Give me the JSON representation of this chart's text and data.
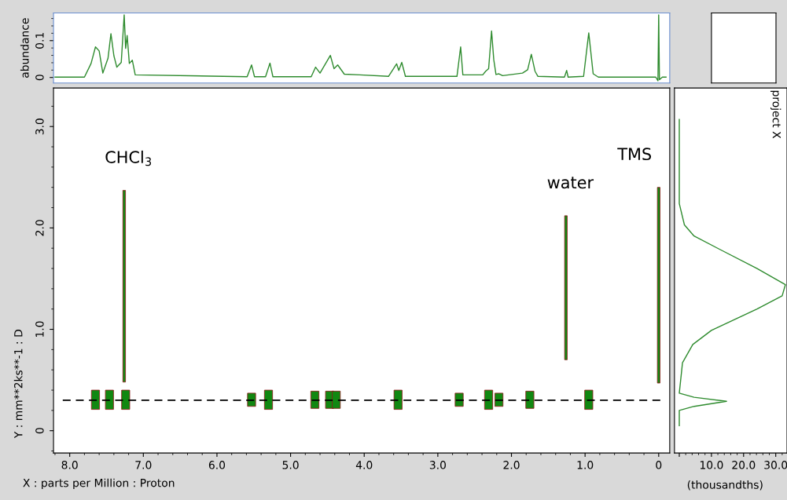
{
  "chart_data": [
    {
      "type": "line",
      "ylabel": "abundance",
      "tick_labels": "y",
      "xlim": [
        8.22,
        -0.15
      ],
      "ylim": [
        -0.015,
        0.175
      ],
      "yticks": [
        0,
        0.1
      ],
      "grid": false,
      "legend": false,
      "series": [
        {
          "color": "#2e8b2e",
          "x": [
            8.2,
            7.8,
            7.71,
            7.65,
            7.6,
            7.55,
            7.48,
            7.44,
            7.4,
            7.36,
            7.3,
            7.26,
            7.24,
            7.22,
            7.19,
            7.15,
            7.11,
            5.59,
            5.53,
            5.49,
            5.34,
            5.28,
            5.24,
            4.72,
            4.66,
            4.6,
            4.46,
            4.41,
            4.36,
            4.27,
            4.06,
            3.67,
            3.56,
            3.53,
            3.49,
            3.44,
            2.74,
            2.69,
            2.66,
            2.39,
            2.35,
            2.31,
            2.27,
            2.24,
            2.21,
            2.17,
            2.12,
            1.85,
            1.78,
            1.73,
            1.68,
            1.64,
            1.28,
            1.25,
            1.23,
            1.02,
            0.95,
            0.89,
            0.82,
            0.04,
            0.01,
            0.0,
            -0.01,
            -0.05,
            -0.1
          ],
          "values": [
            0.001,
            0.001,
            0.038,
            0.083,
            0.072,
            0.012,
            0.052,
            0.119,
            0.059,
            0.028,
            0.041,
            0.17,
            0.079,
            0.114,
            0.038,
            0.047,
            0.007,
            0.002,
            0.034,
            0.002,
            0.002,
            0.039,
            0.002,
            0.002,
            0.028,
            0.012,
            0.06,
            0.024,
            0.034,
            0.009,
            0.007,
            0.003,
            0.037,
            0.019,
            0.041,
            0.003,
            0.003,
            0.083,
            0.007,
            0.007,
            0.017,
            0.024,
            0.126,
            0.048,
            0.008,
            0.01,
            0.005,
            0.012,
            0.021,
            0.063,
            0.017,
            0.003,
            0.001,
            0.019,
            0.001,
            0.003,
            0.121,
            0.01,
            0.001,
            0.001,
            -0.009,
            0.17,
            -0.006,
            0.001,
            0.001
          ]
        }
      ]
    },
    {
      "type": "bar",
      "xlabel": "X : parts per Million : Proton",
      "ylabel": "Y : mm**2ks**-1 : D",
      "xlim": [
        8.22,
        -0.15
      ],
      "ylim": [
        -0.22,
        3.38
      ],
      "xticks": [
        {
          "value": 8,
          "label": "8.0"
        },
        {
          "value": 7,
          "label": "7.0"
        },
        {
          "value": 6,
          "label": "6.0"
        },
        {
          "value": 5,
          "label": "5.0"
        },
        {
          "value": 4,
          "label": "4.0"
        },
        {
          "value": 3,
          "label": "3.0"
        },
        {
          "value": 2,
          "label": "2.0"
        },
        {
          "value": 1,
          "label": "1.0"
        },
        0
      ],
      "yticks": [
        0,
        {
          "value": 1,
          "label": "1.0"
        },
        {
          "value": 2,
          "label": "2.0"
        },
        {
          "value": 3,
          "label": "3.0"
        }
      ],
      "grid": false,
      "legend": false,
      "series": [
        {
          "color": "#118811",
          "x": [
            7.65,
            7.46,
            7.24,
            5.53,
            5.3,
            4.67,
            4.47,
            4.38,
            3.54,
            2.71,
            2.31,
            2.17,
            1.75,
            0.95
          ],
          "base": [
            0.21,
            0.21,
            0.21,
            0.24,
            0.21,
            0.22,
            0.22,
            0.22,
            0.21,
            0.24,
            0.21,
            0.24,
            0.22,
            0.21
          ],
          "values": [
            0.19,
            0.19,
            0.19,
            0.13,
            0.19,
            0.17,
            0.17,
            0.17,
            0.19,
            0.13,
            0.19,
            0.13,
            0.17,
            0.19
          ]
        },
        {
          "color": "#118811",
          "x": [
            7.26,
            1.26,
            0.0
          ],
          "base": [
            0.48,
            0.7,
            0.47
          ],
          "values": [
            1.89,
            1.42,
            1.93
          ]
        }
      ],
      "ref_lines": [
        {
          "axis": "y",
          "value": 0.3,
          "color": "#000000",
          "line_style": "dashed"
        }
      ],
      "annotations": [
        {
          "text": "CHCl$_{3}$",
          "x": 7.26,
          "y": 2.37
        },
        {
          "text": "water",
          "x": 1.26,
          "y": 2.12
        },
        {
          "text": "TMS",
          "x": 0.0,
          "y": 2.4
        }
      ]
    },
    {
      "type": "line",
      "xlabel": "(thousandths)",
      "tick_labels": "x",
      "xlim": [
        -1.5,
        33.5
      ],
      "ylim": [
        -0.22,
        3.38
      ],
      "xticks": [
        {
          "value": 0,
          "label": null
        },
        {
          "value": 10,
          "label": "10.0"
        },
        {
          "value": 20,
          "label": "20.0"
        },
        {
          "value": 30,
          "label": "30.0"
        }
      ],
      "grid": false,
      "legend": false,
      "annotations": [
        "project X"
      ],
      "series": [
        {
          "color": "#2e8b2e",
          "x": [
            0,
            0,
            1.6,
            4.6,
            12.5,
            24.2,
            33,
            32,
            24.2,
            10,
            4.2,
            1,
            0,
            4.6,
            14.7,
            4.6,
            0,
            0
          ],
          "values": [
            3.07,
            2.24,
            2.03,
            1.92,
            1.79,
            1.6,
            1.44,
            1.33,
            1.2,
            0.99,
            0.85,
            0.67,
            0.37,
            0.33,
            0.29,
            0.24,
            0.2,
            0.05
          ]
        }
      ]
    }
  ]
}
